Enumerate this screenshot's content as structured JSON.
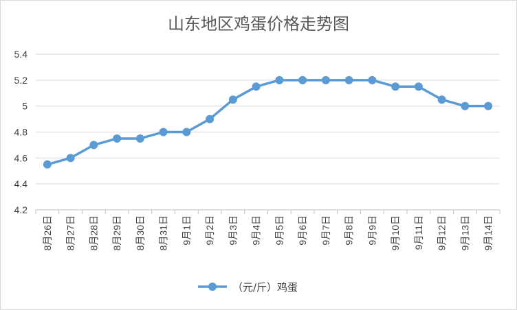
{
  "chart_data": {
    "type": "line",
    "title": "山东地区鸡蛋价格走势图",
    "categories": [
      "8月26日",
      "8月27日",
      "8月28日",
      "8月29日",
      "8月30日",
      "8月31日",
      "9月1日",
      "9月2日",
      "9月3日",
      "9月4日",
      "9月5日",
      "9月6日",
      "9月7日",
      "9月8日",
      "9月9日",
      "9月10日",
      "9月11日",
      "9月12日",
      "9月13日",
      "9月14日"
    ],
    "series": [
      {
        "name": "（元/斤）鸡蛋",
        "values": [
          4.55,
          4.6,
          4.7,
          4.75,
          4.75,
          4.8,
          4.8,
          4.9,
          5.05,
          5.15,
          5.2,
          5.2,
          5.2,
          5.2,
          5.2,
          5.15,
          5.15,
          5.05,
          5.0,
          5.0
        ]
      }
    ],
    "ylim": [
      4.2,
      5.4
    ],
    "yticks": [
      "4.2",
      "4.4",
      "4.6",
      "4.8",
      "5",
      "5.2",
      "5.4"
    ],
    "grid": true,
    "legend_position": "bottom",
    "colors": {
      "series": "#5b9bd5",
      "grid": "#d9d9d9",
      "axis": "#bfbfbf"
    }
  }
}
